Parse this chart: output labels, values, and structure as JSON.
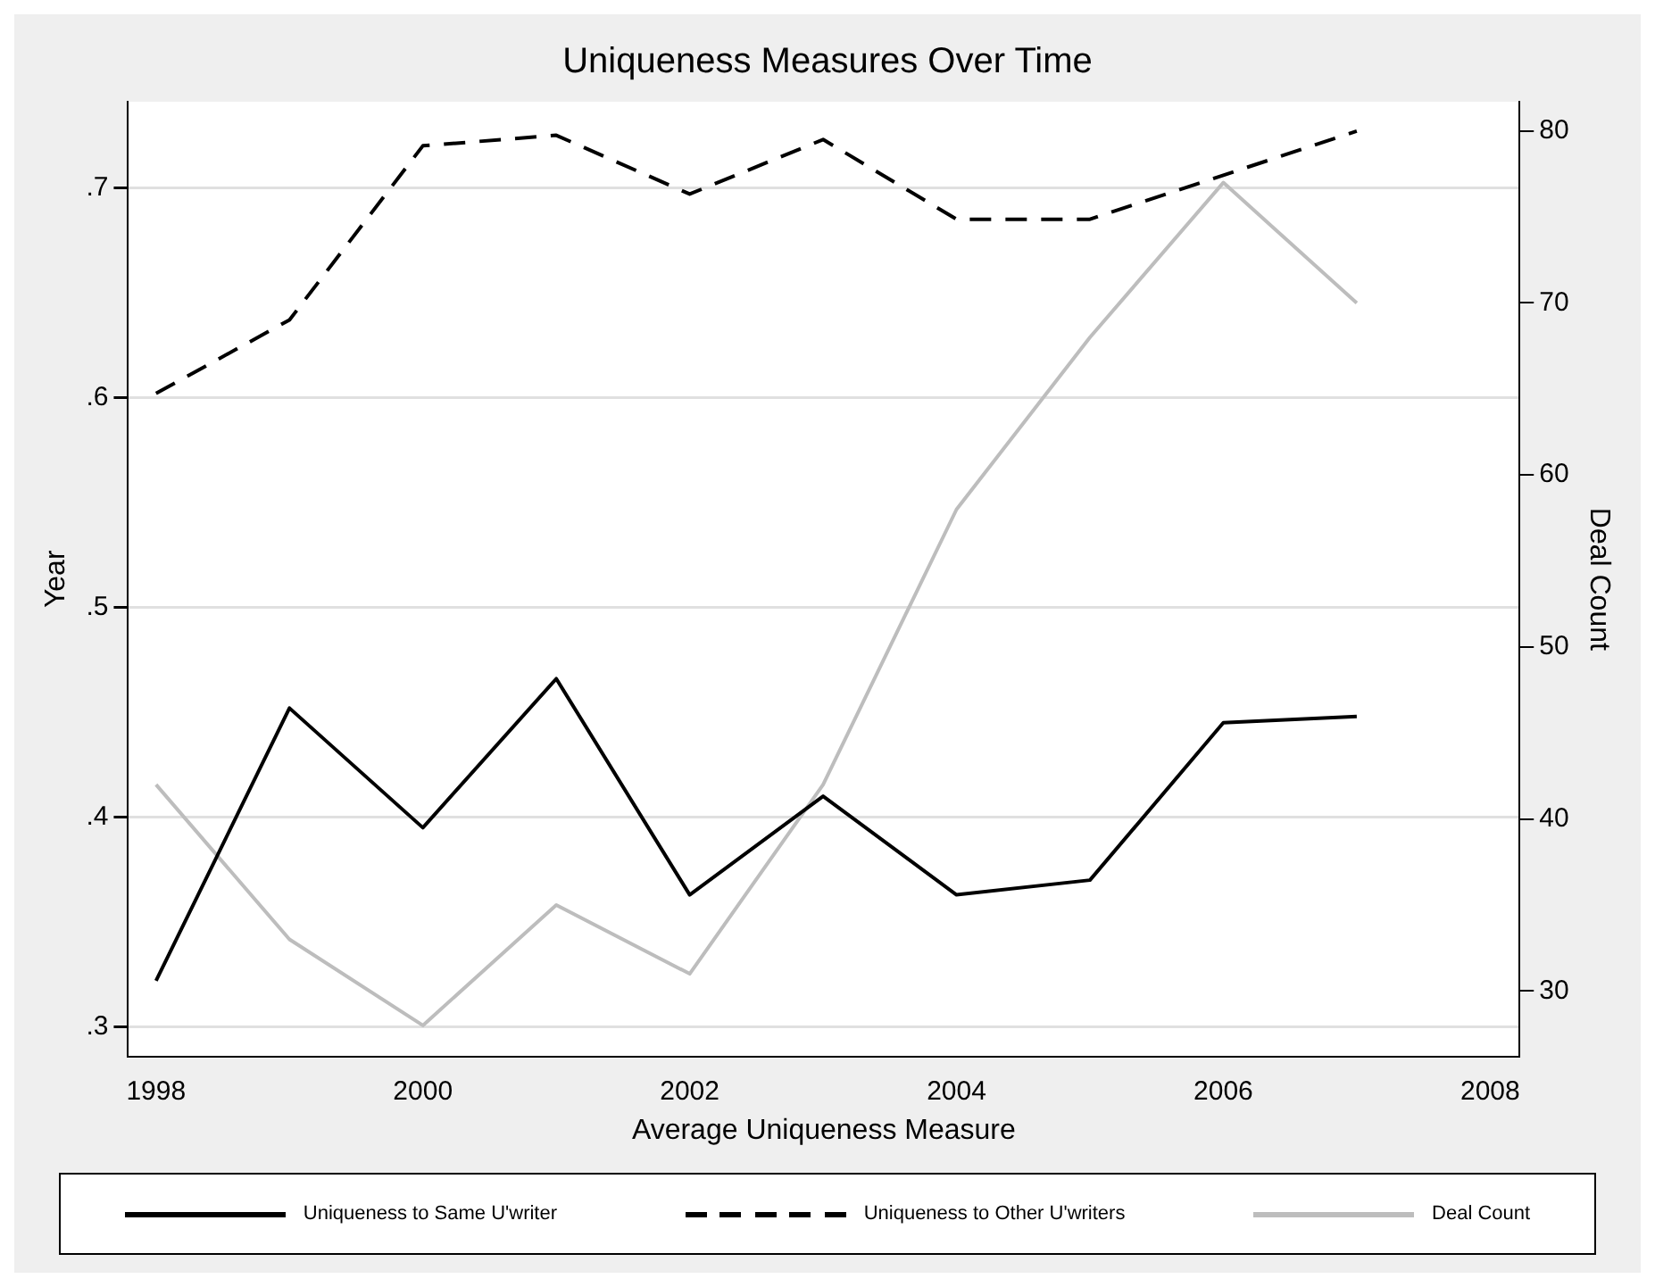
{
  "chart_data": {
    "type": "line",
    "title": "Uniqueness Measures Over Time",
    "xlabel": "Average Uniqueness Measure",
    "ylabel": "Year",
    "y2label": "Deal Count",
    "x": [
      1998,
      1999,
      2000,
      2001,
      2002,
      2003,
      2004,
      2005,
      2006,
      2007
    ],
    "series": [
      {
        "name": "Uniqueness to Same U'writer",
        "color": "#000000",
        "line_style": "solid",
        "values": [
          0.322,
          0.452,
          0.395,
          0.466,
          0.363,
          0.41,
          0.363,
          0.37,
          0.445,
          0.448
        ]
      },
      {
        "name": "Uniqueness to Other U'writers",
        "color": "#000000",
        "line_style": "dashed",
        "values": [
          0.602,
          0.637,
          0.72,
          0.725,
          0.697,
          0.723,
          0.685,
          0.685,
          0.706,
          0.727
        ]
      },
      {
        "name": "Deal Count",
        "color": "#bdbdbd",
        "line_style": "solid",
        "axis": "y2",
        "values": [
          42,
          33,
          28,
          35,
          31,
          42,
          58,
          68,
          77,
          70
        ]
      }
    ],
    "xlim": [
      1997.79,
      2008.22
    ],
    "xticks": [
      1998,
      2000,
      2002,
      2004,
      2006,
      2008
    ],
    "ylim": [
      0.286,
      0.741
    ],
    "yticks": [
      {
        "value": 0.3,
        "label": ".3"
      },
      {
        "value": 0.4,
        "label": ".4"
      },
      {
        "value": 0.5,
        "label": ".5"
      },
      {
        "value": 0.6,
        "label": ".6"
      },
      {
        "value": 0.7,
        "label": ".7"
      }
    ],
    "y2lim": [
      26.2,
      81.7
    ],
    "y2ticks": [
      30,
      40,
      50,
      60,
      70,
      80
    ],
    "grid": "y",
    "legend": "bottom",
    "marker": "none"
  }
}
